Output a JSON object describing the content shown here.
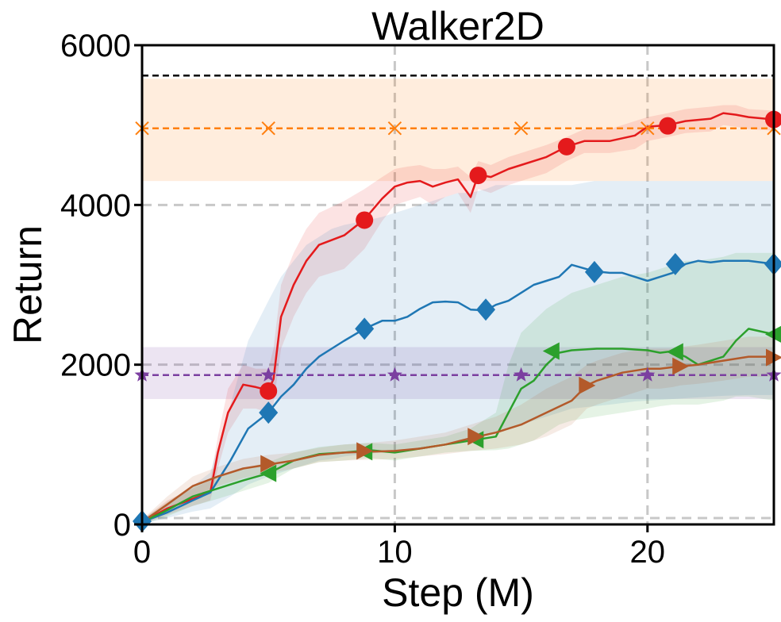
{
  "chart_data": {
    "type": "line",
    "title": "Walker2D",
    "xlabel": "Step (M)",
    "ylabel": "Return",
    "xlim": [
      0,
      25
    ],
    "ylim": [
      0,
      6000
    ],
    "xticks": [
      0,
      10,
      20
    ],
    "yticks": [
      0,
      2000,
      4000,
      6000
    ],
    "xtick_labels": [
      "0",
      "10",
      "20"
    ],
    "ytick_labels": [
      "0",
      "2000",
      "4000",
      "6000"
    ],
    "grid": true,
    "reference_lines": [
      {
        "name": "black-dashed-reference",
        "y": 5620,
        "color": "#000000",
        "marker": "none"
      },
      {
        "name": "orange-x-baseline",
        "y": 4960,
        "band": [
          4300,
          5580
        ],
        "color": "#ff7f0e",
        "marker": "x"
      },
      {
        "name": "purple-star-baseline",
        "y": 1870,
        "band": [
          1570,
          2220
        ],
        "color": "#7b3fa0",
        "marker": "star"
      }
    ],
    "series": [
      {
        "name": "red-circle",
        "color": "#e41a1c",
        "marker": "circle",
        "x": [
          0,
          1,
          2,
          2.7,
          3,
          3.4,
          4,
          4.5,
          5,
          5.2,
          5.5,
          6,
          6.5,
          7,
          8,
          8.8,
          9.5,
          10,
          10.5,
          11,
          11.5,
          12,
          12.5,
          13,
          13.3,
          13.8,
          14.5,
          15,
          16,
          16.8,
          17.5,
          18.5,
          19.5,
          20,
          20.8,
          21.5,
          22.5,
          23,
          23.5,
          24,
          25
        ],
        "y": [
          30,
          200,
          320,
          400,
          900,
          1400,
          1750,
          1720,
          1680,
          1820,
          2600,
          3000,
          3300,
          3500,
          3620,
          3820,
          4080,
          4230,
          4280,
          4300,
          4230,
          4280,
          4320,
          4100,
          4380,
          4350,
          4450,
          4500,
          4600,
          4730,
          4800,
          4800,
          4870,
          4980,
          5000,
          5050,
          5080,
          5150,
          5130,
          5100,
          5070
        ],
        "band_upper": [
          60,
          300,
          450,
          550,
          1100,
          1700,
          2000,
          1950,
          1950,
          2200,
          3000,
          3400,
          3700,
          3900,
          4050,
          4200,
          4350,
          4450,
          4480,
          4500,
          4450,
          4450,
          4480,
          4350,
          4550,
          4500,
          4600,
          4650,
          4750,
          4850,
          4950,
          4950,
          5050,
          5100,
          5150,
          5200,
          5230,
          5250,
          5250,
          5200,
          5180
        ],
        "band_lower": [
          0,
          120,
          230,
          300,
          700,
          1150,
          1450,
          1450,
          1400,
          1500,
          2200,
          2600,
          2900,
          3100,
          3200,
          3450,
          3800,
          4000,
          4050,
          4100,
          4000,
          4100,
          4150,
          3900,
          4200,
          4150,
          4250,
          4300,
          4400,
          4550,
          4650,
          4650,
          4700,
          4800,
          4850,
          4900,
          4920,
          5000,
          4980,
          4950,
          4930
        ],
        "marker_x": [
          5,
          8.8,
          13.3,
          16.8,
          20.8,
          25
        ],
        "marker_y": [
          1670,
          3810,
          4370,
          4730,
          4990,
          5070
        ]
      },
      {
        "name": "blue-diamond",
        "color": "#1f77b4",
        "marker": "diamond",
        "x": [
          0,
          1,
          2,
          2.7,
          3.5,
          4.2,
          5,
          5.5,
          6,
          6.5,
          7,
          7.5,
          8,
          8.8,
          9.5,
          10,
          10.5,
          11,
          11.5,
          12,
          12.5,
          13,
          13.6,
          14,
          14.5,
          15,
          15.5,
          16,
          16.5,
          17,
          17.9,
          18.5,
          19,
          19.5,
          20,
          20.5,
          21,
          21.5,
          22,
          22.5,
          23,
          24,
          25
        ],
        "y": [
          30,
          150,
          300,
          400,
          800,
          1200,
          1400,
          1600,
          1750,
          1950,
          2100,
          2200,
          2300,
          2450,
          2550,
          2550,
          2600,
          2700,
          2780,
          2790,
          2780,
          2690,
          2680,
          2750,
          2800,
          2900,
          3000,
          3050,
          3100,
          3250,
          3170,
          3150,
          3150,
          3100,
          3050,
          3100,
          3150,
          3260,
          3300,
          3280,
          3300,
          3300,
          3260
        ],
        "band_upper": [
          60,
          250,
          480,
          650,
          1500,
          2300,
          2800,
          3100,
          3300,
          3500,
          3600,
          3700,
          3750,
          3800,
          3850,
          3900,
          3950,
          4000,
          4050,
          4100,
          4150,
          4150,
          4200,
          4250,
          4250,
          4250,
          4250,
          4250,
          4250,
          4250,
          4300,
          4300,
          4300,
          4300,
          4300,
          4300,
          4300,
          4300,
          4300,
          4300,
          4300,
          4300,
          4300
        ],
        "band_lower": [
          0,
          80,
          160,
          200,
          350,
          500,
          600,
          650,
          700,
          750,
          800,
          820,
          850,
          880,
          900,
          920,
          940,
          960,
          990,
          1020,
          1050,
          1080,
          1120,
          1160,
          1200,
          1250,
          1300,
          1350,
          1400,
          1450,
          1480,
          1500,
          1520,
          1540,
          1550,
          1560,
          1570,
          1580,
          1590,
          1600,
          1610,
          1620,
          1620
        ],
        "marker_x": [
          0,
          5,
          8.8,
          13.6,
          17.9,
          21.1,
          25
        ],
        "marker_y": [
          40,
          1400,
          2450,
          2690,
          3160,
          3260,
          3260
        ]
      },
      {
        "name": "green-triangle-left",
        "color": "#2ca02c",
        "marker": "triangle-left",
        "x": [
          0,
          1,
          2,
          3,
          4,
          5,
          6,
          7,
          8,
          9,
          10,
          11,
          12,
          13,
          14,
          14.5,
          15,
          15.5,
          16,
          16.5,
          17,
          18,
          19,
          20,
          20.5,
          21,
          21.5,
          22,
          23,
          23.5,
          24,
          25
        ],
        "y": [
          30,
          180,
          350,
          450,
          550,
          640,
          800,
          880,
          900,
          930,
          900,
          950,
          1000,
          1050,
          1100,
          1400,
          1700,
          1800,
          2000,
          2150,
          2180,
          2200,
          2200,
          2180,
          2150,
          2170,
          2100,
          2000,
          2100,
          2300,
          2450,
          2380
        ],
        "band_upper": [
          60,
          280,
          480,
          600,
          700,
          780,
          900,
          970,
          1000,
          1020,
          1000,
          1050,
          1100,
          1200,
          1400,
          2000,
          2400,
          2550,
          2700,
          2800,
          2900,
          3000,
          3100,
          3150,
          3200,
          3250,
          3300,
          3300,
          3350,
          3400,
          3400,
          3400
        ],
        "band_lower": [
          0,
          100,
          230,
          320,
          420,
          520,
          700,
          780,
          800,
          830,
          800,
          850,
          900,
          920,
          930,
          950,
          1000,
          1050,
          1150,
          1250,
          1300,
          1350,
          1400,
          1450,
          1480,
          1500,
          1500,
          1500,
          1550,
          1600,
          1600,
          1550
        ],
        "marker_x": [
          5,
          8.8,
          13.2,
          16.2,
          21.1,
          25
        ],
        "marker_y": [
          640,
          910,
          1060,
          2170,
          2160,
          2380
        ]
      },
      {
        "name": "brown-triangle-right",
        "color": "#b35a2a",
        "marker": "triangle-right",
        "x": [
          0,
          1,
          2,
          3,
          4,
          5,
          6,
          7,
          8,
          9,
          10,
          11,
          12,
          13,
          14,
          15,
          16,
          17,
          17.6,
          18,
          19,
          20,
          20.5,
          21,
          21.3,
          22,
          23,
          24,
          25
        ],
        "y": [
          30,
          250,
          480,
          600,
          700,
          750,
          800,
          870,
          900,
          910,
          920,
          950,
          1000,
          1080,
          1150,
          1250,
          1400,
          1550,
          1740,
          1800,
          1900,
          1950,
          1950,
          1970,
          1980,
          2000,
          2050,
          2100,
          2100
        ],
        "band_upper": [
          60,
          350,
          600,
          720,
          820,
          870,
          900,
          960,
          1000,
          1020,
          1050,
          1100,
          1150,
          1250,
          1350,
          1500,
          1700,
          1850,
          2000,
          2050,
          2150,
          2200,
          2200,
          2200,
          2220,
          2250,
          2300,
          2350,
          2350
        ],
        "band_lower": [
          0,
          150,
          350,
          480,
          580,
          640,
          700,
          780,
          800,
          810,
          820,
          850,
          880,
          920,
          950,
          1000,
          1100,
          1250,
          1450,
          1500,
          1600,
          1700,
          1700,
          1720,
          1740,
          1760,
          1800,
          1850,
          1850
        ],
        "marker_x": [
          5,
          8.8,
          13.2,
          17.6,
          21.3,
          25
        ],
        "marker_y": [
          760,
          920,
          1100,
          1740,
          1980,
          2090
        ]
      }
    ]
  }
}
